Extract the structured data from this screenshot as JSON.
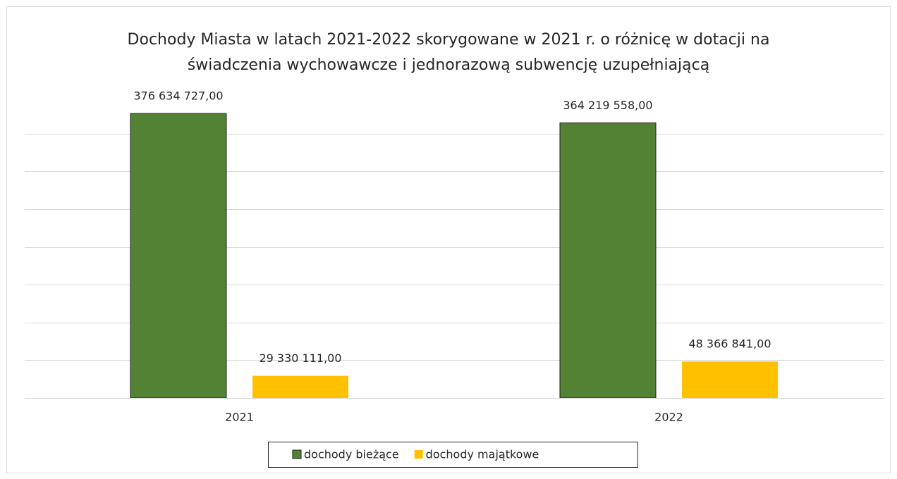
{
  "chart_data": {
    "type": "bar",
    "title": [
      "Dochody Miasta w latach 2021-2022 skorygowane w 2021 r. o różnicę w dotacji na",
      "świadczenia wychowawcze i jednorazową subwencję uzupełniającą"
    ],
    "categories": [
      "2021",
      "2022"
    ],
    "series": [
      {
        "name": "dochody bieżące",
        "color": "#548235",
        "values": [
          376634727,
          364219558
        ],
        "value_labels": [
          "376 634 727,00",
          "364 219 558,00"
        ]
      },
      {
        "name": "dochody majątkowe",
        "color": "#ffc000",
        "values": [
          29330111,
          48366841
        ],
        "value_labels": [
          "29 330 111,00",
          "48 366 841,00"
        ]
      }
    ],
    "ylim": [
      0,
      400000000
    ],
    "yticks": [
      0,
      50000000,
      100000000,
      150000000,
      200000000,
      250000000,
      300000000,
      350000000
    ],
    "grid": true,
    "legend": "bottom"
  }
}
